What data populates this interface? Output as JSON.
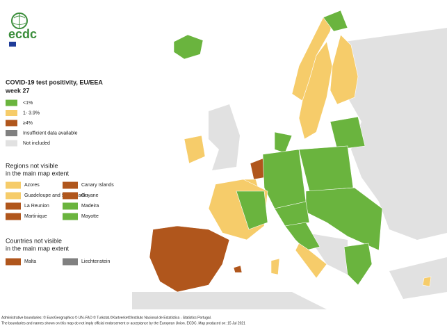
{
  "logo": {
    "text": "ecdc"
  },
  "title": {
    "line1": "COVID-19 test positivity, EU/EEA",
    "line2": "week 27"
  },
  "legend": {
    "items": [
      {
        "label": "<1%",
        "color": "#6ab43e"
      },
      {
        "label": "1- 3.9%",
        "color": "#f6cc6a"
      },
      {
        "label": "≥4%",
        "color": "#b0561c"
      },
      {
        "label": "Insufficient data available",
        "color": "#808080"
      },
      {
        "label": "Not included",
        "color": "#e1e1e1"
      }
    ]
  },
  "regions": {
    "heading1": "Regions not visible",
    "heading2": "in the main map extent",
    "items": [
      {
        "label": "Azores",
        "color": "#f6cc6a"
      },
      {
        "label": "Canary Islands",
        "color": "#b0561c"
      },
      {
        "label": "Guadeloupe and Saint Martin",
        "color": "#f6cc6a"
      },
      {
        "label": "Guyane",
        "color": "#b0561c"
      },
      {
        "label": "La Reunion",
        "color": "#b0561c"
      },
      {
        "label": "Madeira",
        "color": "#6ab43e"
      },
      {
        "label": "Martinique",
        "color": "#b0561c"
      },
      {
        "label": "Mayotte",
        "color": "#6ab43e"
      }
    ]
  },
  "countries": {
    "heading1": "Countries not visible",
    "heading2": "in the main map extent",
    "items": [
      {
        "label": "Malta",
        "color": "#b0561c"
      },
      {
        "label": "Liechtenstein",
        "color": "#808080"
      }
    ]
  },
  "footer": {
    "line1": "Administrative boundaries: © EuroGeographics © UN–FAO © Turkstat.©Kartverket©Instituto Nacional de Estatística - Statistics Portugal.",
    "line2": "The boundaries and names shown on this map do not imply official endorsement or acceptance by the European Union. ECDC. Map produced on: 15 Jul 2021"
  }
}
